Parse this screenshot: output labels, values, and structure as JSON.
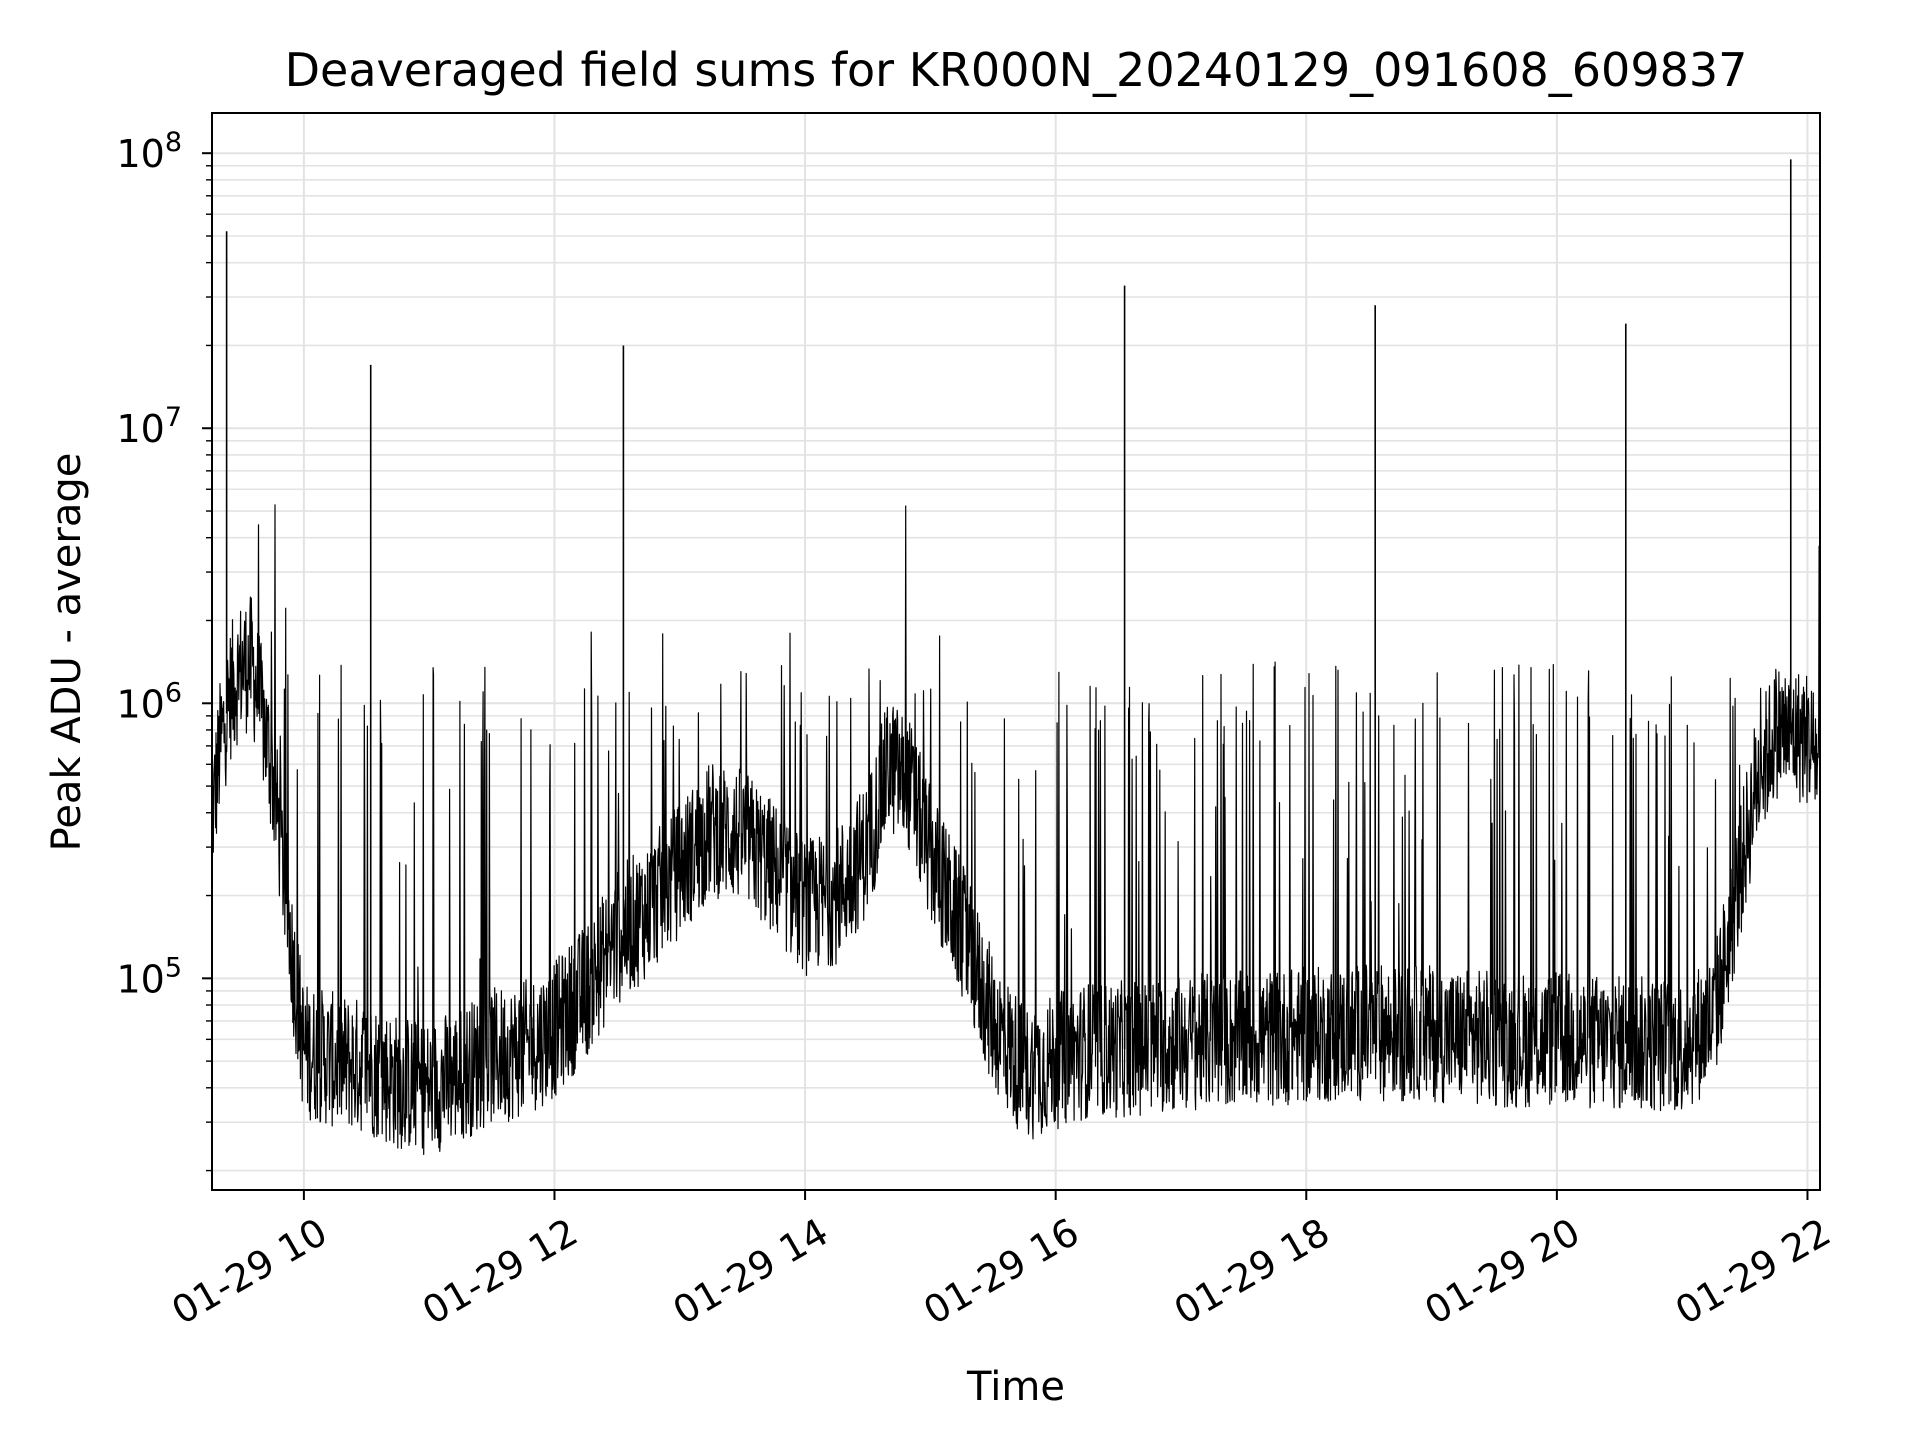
{
  "chart_data": {
    "type": "line",
    "title": "Deaveraged field sums for KR000N_20240129_091608_609837",
    "xlabel": "Time",
    "ylabel": "Peak ADU - average",
    "y_scale": "log",
    "grid": true,
    "legend": "none",
    "xlim": [
      "2024-01-29 09:16",
      "2024-01-29 22:06"
    ],
    "ylim": [
      17000,
      140000000
    ],
    "x_ticks": [
      {
        "value": "2024-01-29 10:00",
        "label": "01-29 10"
      },
      {
        "value": "2024-01-29 12:00",
        "label": "01-29 12"
      },
      {
        "value": "2024-01-29 14:00",
        "label": "01-29 14"
      },
      {
        "value": "2024-01-29 16:00",
        "label": "01-29 16"
      },
      {
        "value": "2024-01-29 18:00",
        "label": "01-29 18"
      },
      {
        "value": "2024-01-29 20:00",
        "label": "01-29 20"
      },
      {
        "value": "2024-01-29 22:00",
        "label": "01-29 22"
      }
    ],
    "y_ticks": [
      {
        "value": 100000,
        "base": "10",
        "exp": "5"
      },
      {
        "value": 1000000,
        "base": "10",
        "exp": "6"
      },
      {
        "value": 10000000,
        "base": "10",
        "exp": "7"
      },
      {
        "value": 100000000,
        "base": "10",
        "exp": "8"
      }
    ],
    "series": [
      {
        "color": "#000000",
        "points": [
          [
            "2024-01-29 09:16",
            380000
          ],
          [
            "2024-01-29 09:20",
            700000
          ],
          [
            "2024-01-29 09:25",
            1100000
          ],
          [
            "2024-01-29 09:30",
            1350000
          ],
          [
            "2024-01-29 09:35",
            1400000
          ],
          [
            "2024-01-29 09:40",
            900000
          ],
          [
            "2024-01-29 09:45",
            550000
          ],
          [
            "2024-01-29 09:50",
            260000
          ],
          [
            "2024-01-29 09:55",
            110000
          ],
          [
            "2024-01-29 10:00",
            55000
          ],
          [
            "2024-01-29 10:15",
            50000
          ],
          [
            "2024-01-29 10:30",
            48000
          ],
          [
            "2024-01-29 10:45",
            42000
          ],
          [
            "2024-01-29 11:00",
            40000
          ],
          [
            "2024-01-29 11:15",
            45000
          ],
          [
            "2024-01-29 11:30",
            52000
          ],
          [
            "2024-01-29 11:45",
            55000
          ],
          [
            "2024-01-29 12:00",
            65000
          ],
          [
            "2024-01-29 12:15",
            90000
          ],
          [
            "2024-01-29 12:30",
            140000
          ],
          [
            "2024-01-29 12:45",
            180000
          ],
          [
            "2024-01-29 13:00",
            250000
          ],
          [
            "2024-01-29 13:15",
            350000
          ],
          [
            "2024-01-29 13:30",
            330000
          ],
          [
            "2024-01-29 13:45",
            250000
          ],
          [
            "2024-01-29 14:00",
            180000
          ],
          [
            "2024-01-29 14:15",
            200000
          ],
          [
            "2024-01-29 14:30",
            300000
          ],
          [
            "2024-01-29 14:40",
            600000
          ],
          [
            "2024-01-29 14:50",
            500000
          ],
          [
            "2024-01-29 15:00",
            280000
          ],
          [
            "2024-01-29 15:15",
            150000
          ],
          [
            "2024-01-29 15:30",
            70000
          ],
          [
            "2024-01-29 15:45",
            45000
          ],
          [
            "2024-01-29 16:00",
            50000
          ],
          [
            "2024-01-29 16:15",
            55000
          ],
          [
            "2024-01-29 16:30",
            55000
          ],
          [
            "2024-01-29 17:00",
            58000
          ],
          [
            "2024-01-29 17:30",
            60000
          ],
          [
            "2024-01-29 18:00",
            62000
          ],
          [
            "2024-01-29 18:30",
            64000
          ],
          [
            "2024-01-29 19:00",
            63000
          ],
          [
            "2024-01-29 19:30",
            60000
          ],
          [
            "2024-01-29 20:00",
            60000
          ],
          [
            "2024-01-29 20:30",
            58000
          ],
          [
            "2024-01-29 21:00",
            57000
          ],
          [
            "2024-01-29 21:15",
            70000
          ],
          [
            "2024-01-29 21:25",
            180000
          ],
          [
            "2024-01-29 21:35",
            500000
          ],
          [
            "2024-01-29 21:45",
            800000
          ],
          [
            "2024-01-29 22:00",
            750000
          ],
          [
            "2024-01-29 22:06",
            600000
          ]
        ]
      }
    ],
    "spikes": [
      [
        "2024-01-29 09:23",
        52000000
      ],
      [
        "2024-01-29 10:32",
        17000000
      ],
      [
        "2024-01-29 12:33",
        20000000
      ],
      [
        "2024-01-29 16:33",
        33000000
      ],
      [
        "2024-01-29 18:33",
        28000000
      ],
      [
        "2024-01-29 20:33",
        24000000
      ],
      [
        "2024-01-29 21:52",
        95000000
      ]
    ]
  }
}
